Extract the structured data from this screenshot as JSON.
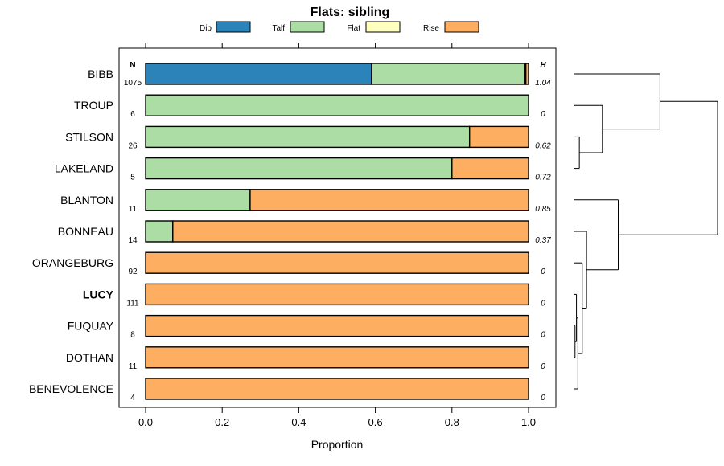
{
  "chart_data": {
    "type": "bar",
    "orientation": "horizontal",
    "stacked": true,
    "title": "Flats: sibling",
    "xlabel": "Proportion",
    "ylabel": "",
    "xlim": [
      0,
      1
    ],
    "x_ticks": [
      "0.0",
      "0.2",
      "0.4",
      "0.6",
      "0.8",
      "1.0"
    ],
    "legend": [
      {
        "name": "Dip",
        "color": "#2b83ba"
      },
      {
        "name": "Talf",
        "color": "#abdda4"
      },
      {
        "name": "Flat",
        "color": "#ffffbf"
      },
      {
        "name": "Rise",
        "color": "#fdae61"
      }
    ],
    "n_header": "N",
    "h_header": "H",
    "categories": [
      "BIBB",
      "TROUP",
      "STILSON",
      "LAKELAND",
      "BLANTON",
      "BONNEAU",
      "ORANGEBURG",
      "LUCY",
      "FUQUAY",
      "DOTHAN",
      "BENEVOLENCE"
    ],
    "highlighted": "LUCY",
    "n": [
      "1075",
      "6",
      "26",
      "5",
      "11",
      "14",
      "92",
      "111",
      "8",
      "11",
      "4"
    ],
    "h": [
      "1.04",
      "0",
      "0.62",
      "0.72",
      "0.85",
      "0.37",
      "0",
      "0",
      "0",
      "0",
      "0"
    ],
    "series": [
      {
        "name": "Dip",
        "values": [
          0.59,
          0,
          0,
          0,
          0,
          0,
          0,
          0,
          0,
          0,
          0
        ]
      },
      {
        "name": "Talf",
        "values": [
          0.4,
          1.0,
          0.846,
          0.8,
          0.273,
          0.071,
          0,
          0,
          0,
          0,
          0
        ]
      },
      {
        "name": "Flat",
        "values": [
          0.003,
          0,
          0,
          0,
          0,
          0,
          0,
          0,
          0,
          0,
          0
        ]
      },
      {
        "name": "Rise",
        "values": [
          0.007,
          0,
          0.154,
          0.2,
          0.727,
          0.929,
          1.0,
          1.0,
          1.0,
          1.0,
          1.0
        ]
      }
    ],
    "dendrogram": {
      "merges": [
        {
          "a": 8,
          "b": 9,
          "height": 0.01
        },
        {
          "a": 7,
          "b": "m0",
          "height": 0.02
        },
        {
          "a": "m1",
          "b": 10,
          "height": 0.03
        },
        {
          "a": 6,
          "b": "m2",
          "height": 0.06
        },
        {
          "a": 5,
          "b": "m3",
          "height": 0.09
        },
        {
          "a": 4,
          "b": "m4",
          "height": 0.31
        },
        {
          "a": 2,
          "b": 3,
          "height": 0.04
        },
        {
          "a": 1,
          "b": "m6",
          "height": 0.2
        },
        {
          "a": 0,
          "b": "m7",
          "height": 0.6
        },
        {
          "a": "m8",
          "b": "m5",
          "height": 1.0
        }
      ]
    }
  }
}
